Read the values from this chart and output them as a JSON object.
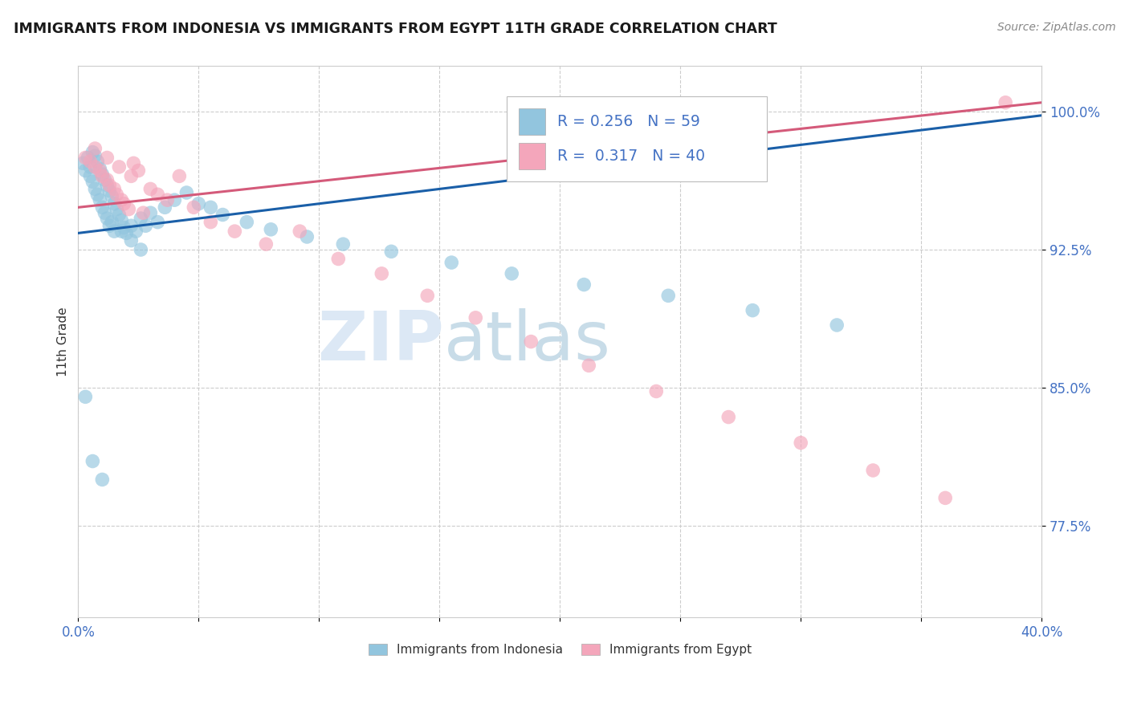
{
  "title": "IMMIGRANTS FROM INDONESIA VS IMMIGRANTS FROM EGYPT 11TH GRADE CORRELATION CHART",
  "source": "Source: ZipAtlas.com",
  "ylabel": "11th Grade",
  "xlim": [
    0.0,
    0.4
  ],
  "ylim": [
    0.725,
    1.025
  ],
  "yticks": [
    0.775,
    0.85,
    0.925,
    1.0
  ],
  "ytick_labels": [
    "77.5%",
    "85.0%",
    "92.5%",
    "100.0%"
  ],
  "xticks": [
    0.0,
    0.05,
    0.1,
    0.15,
    0.2,
    0.25,
    0.3,
    0.35,
    0.4
  ],
  "xtick_labels": [
    "0.0%",
    "",
    "",
    "",
    "",
    "",
    "",
    "",
    "40.0%"
  ],
  "R_indonesia": 0.256,
  "N_indonesia": 59,
  "R_egypt": 0.317,
  "N_egypt": 40,
  "color_indonesia": "#92c5de",
  "color_egypt": "#f4a6bb",
  "trend_color_indonesia": "#1a5fa8",
  "trend_color_egypt": "#d45a7a",
  "watermark_color": "#dce8f5",
  "title_color": "#1a1a1a",
  "tick_color": "#4472c4",
  "background_color": "#ffffff",
  "grid_color": "#cccccc",
  "ind_line_x0": 0.0,
  "ind_line_y0": 0.934,
  "ind_line_x1": 0.4,
  "ind_line_y1": 0.998,
  "egy_line_x0": 0.0,
  "egy_line_y0": 0.948,
  "egy_line_x1": 0.4,
  "egy_line_y1": 1.005,
  "indonesia_x": [
    0.002,
    0.003,
    0.004,
    0.005,
    0.005,
    0.006,
    0.006,
    0.007,
    0.007,
    0.008,
    0.008,
    0.009,
    0.009,
    0.01,
    0.01,
    0.011,
    0.011,
    0.012,
    0.012,
    0.013,
    0.013,
    0.014,
    0.015,
    0.015,
    0.016,
    0.017,
    0.018,
    0.019,
    0.02,
    0.022,
    0.024,
    0.026,
    0.028,
    0.03,
    0.033,
    0.036,
    0.04,
    0.045,
    0.05,
    0.055,
    0.06,
    0.07,
    0.08,
    0.095,
    0.11,
    0.13,
    0.155,
    0.18,
    0.21,
    0.245,
    0.28,
    0.315,
    0.003,
    0.006,
    0.01,
    0.014,
    0.018,
    0.022,
    0.026
  ],
  "indonesia_y": [
    0.972,
    0.968,
    0.975,
    0.97,
    0.965,
    0.978,
    0.962,
    0.976,
    0.958,
    0.973,
    0.955,
    0.969,
    0.952,
    0.966,
    0.948,
    0.963,
    0.945,
    0.96,
    0.942,
    0.957,
    0.938,
    0.954,
    0.95,
    0.935,
    0.947,
    0.944,
    0.941,
    0.937,
    0.934,
    0.938,
    0.935,
    0.942,
    0.938,
    0.945,
    0.94,
    0.948,
    0.952,
    0.956,
    0.95,
    0.948,
    0.944,
    0.94,
    0.936,
    0.932,
    0.928,
    0.924,
    0.918,
    0.912,
    0.906,
    0.9,
    0.892,
    0.884,
    0.845,
    0.81,
    0.8,
    0.94,
    0.935,
    0.93,
    0.925
  ],
  "egypt_x": [
    0.003,
    0.005,
    0.007,
    0.009,
    0.01,
    0.012,
    0.013,
    0.015,
    0.016,
    0.018,
    0.019,
    0.021,
    0.023,
    0.025,
    0.027,
    0.03,
    0.033,
    0.037,
    0.042,
    0.048,
    0.055,
    0.065,
    0.078,
    0.092,
    0.108,
    0.126,
    0.145,
    0.165,
    0.188,
    0.212,
    0.24,
    0.27,
    0.3,
    0.33,
    0.36,
    0.385,
    0.007,
    0.012,
    0.017,
    0.022
  ],
  "egypt_y": [
    0.975,
    0.973,
    0.97,
    0.968,
    0.965,
    0.963,
    0.96,
    0.958,
    0.955,
    0.952,
    0.95,
    0.947,
    0.972,
    0.968,
    0.945,
    0.958,
    0.955,
    0.952,
    0.965,
    0.948,
    0.94,
    0.935,
    0.928,
    0.935,
    0.92,
    0.912,
    0.9,
    0.888,
    0.875,
    0.862,
    0.848,
    0.834,
    0.82,
    0.805,
    0.79,
    1.005,
    0.98,
    0.975,
    0.97,
    0.965
  ]
}
